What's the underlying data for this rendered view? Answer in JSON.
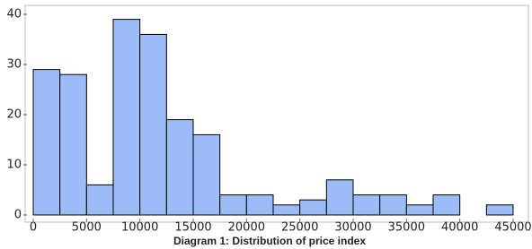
{
  "chart_data": {
    "type": "histogram",
    "caption": "Diagram 1: Distribution of price index",
    "bins": [
      0,
      2500,
      5000,
      7500,
      10000,
      12500,
      15000,
      17500,
      20000,
      22500,
      25000,
      27500,
      30000,
      32500,
      35000,
      37500,
      40000,
      42500,
      45000
    ],
    "values": [
      29,
      28,
      6,
      39,
      36,
      19,
      16,
      4,
      4,
      2,
      3,
      7,
      4,
      4,
      2,
      4,
      0,
      2
    ],
    "color": "#9bbcf7",
    "xlim": [
      0,
      45000
    ],
    "xticks": [
      0,
      5000,
      10000,
      15000,
      20000,
      25000,
      30000,
      35000,
      40000,
      45000
    ],
    "ylim": [
      0,
      41
    ],
    "yticks": [
      0,
      10,
      20,
      30,
      40
    ]
  }
}
